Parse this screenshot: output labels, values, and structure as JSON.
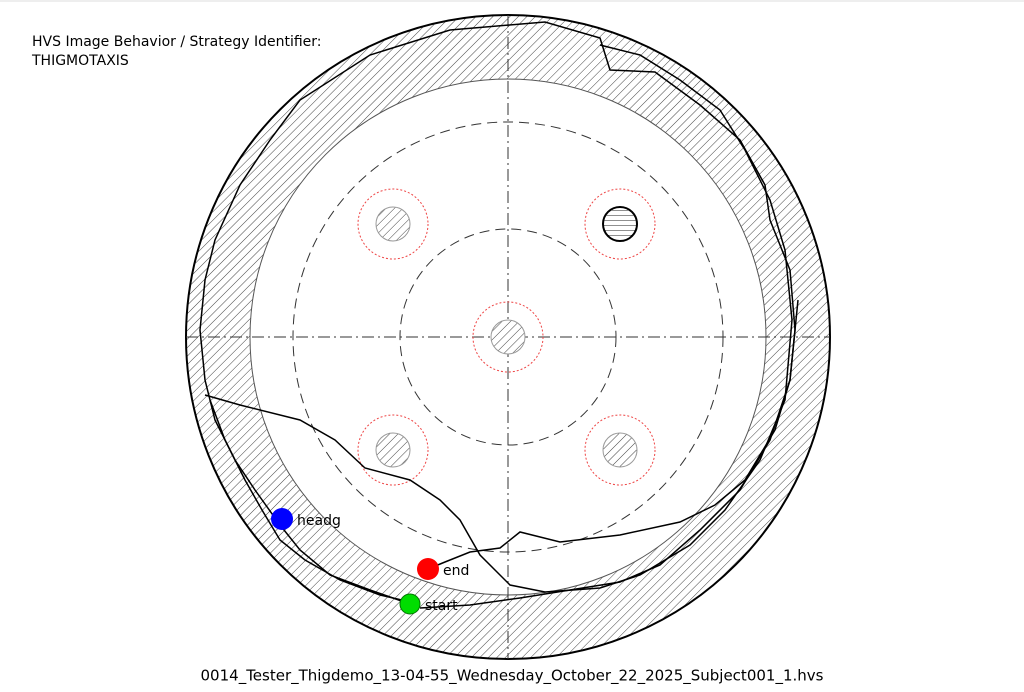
{
  "header": {
    "title": "HVS Image Behavior / Strategy Identifier:",
    "strategy": "THIGMOTAXIS"
  },
  "markers": [
    {
      "label": "headg",
      "color": "#0000ff"
    },
    {
      "label": "end",
      "color": "#ff0000"
    },
    {
      "label": "start",
      "color": "#00dd00"
    }
  ],
  "footer": {
    "filename": "0014_Tester_Thigdemo_13-04-55_Wednesday_October_22_2025_Subject001_1.hvs"
  }
}
